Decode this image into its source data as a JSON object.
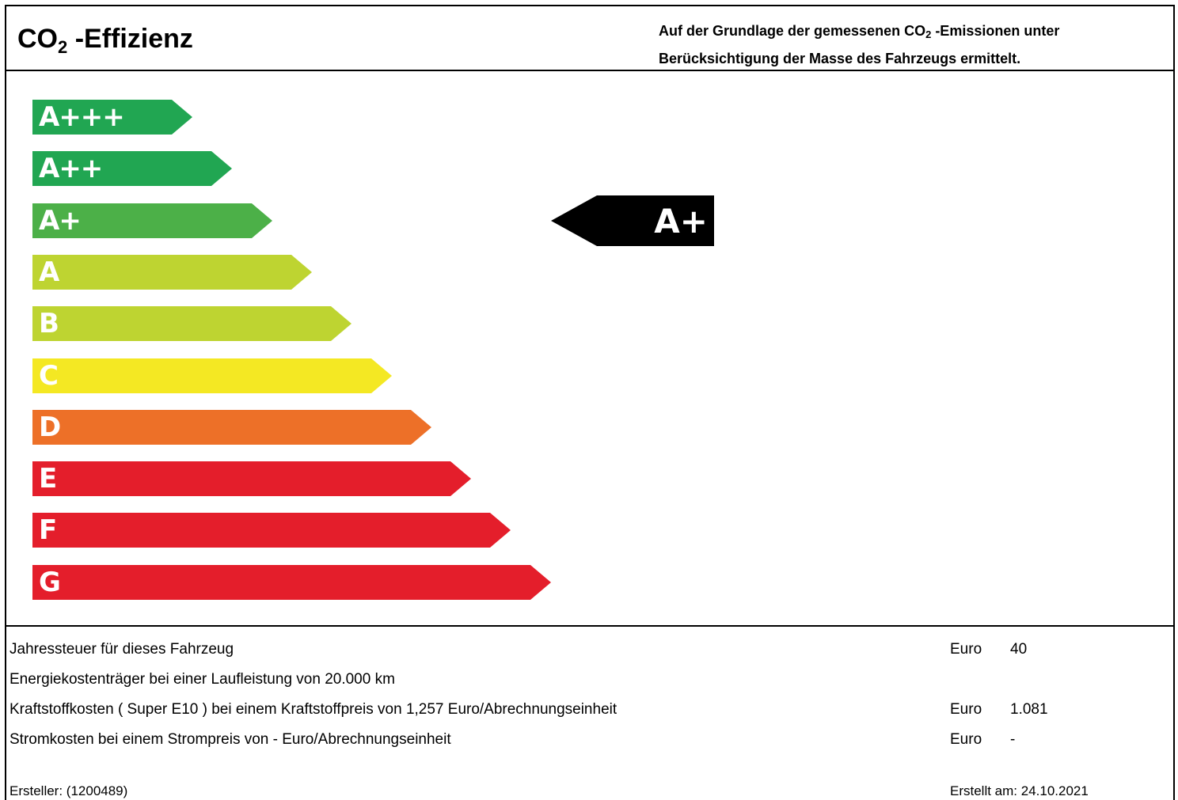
{
  "header": {
    "title_prefix": "CO",
    "title_sub": "2",
    "title_suffix": " -Effizienz",
    "subtitle_line1_prefix": "Auf der Grundlage der gemessenen CO",
    "subtitle_line1_sub": "2",
    "subtitle_line1_suffix": " -Emissionen unter",
    "subtitle_line2": "Berücksichtigung der Masse des Fahrzeugs ermittelt."
  },
  "scale": {
    "classes": [
      {
        "label": "A+++",
        "color": "#21a652"
      },
      {
        "label": "A++",
        "color": "#21a652"
      },
      {
        "label": "A+",
        "color": "#4cb048"
      },
      {
        "label": "A",
        "color": "#bed431"
      },
      {
        "label": "B",
        "color": "#bed431"
      },
      {
        "label": "C",
        "color": "#f4e823"
      },
      {
        "label": "D",
        "color": "#ed7028"
      },
      {
        "label": "E",
        "color": "#e41e2b"
      },
      {
        "label": "F",
        "color": "#e41e2b"
      },
      {
        "label": "G",
        "color": "#e41e2b"
      }
    ],
    "current": {
      "label": "A+",
      "color": "#000000"
    }
  },
  "info": {
    "rows": [
      {
        "label": "Jahressteuer für dieses Fahrzeug",
        "currency": "Euro",
        "value": "40"
      },
      {
        "label": "Energiekostenträger bei einer Laufleistung von 20.000 km",
        "currency": "",
        "value": ""
      },
      {
        "label": "Kraftstoffkosten (  Super E10  ) bei einem Kraftstoffpreis von  1,257  Euro/Abrechnungseinheit",
        "currency": "Euro",
        "value": "1.081"
      },
      {
        "label": "Stromkosten bei einem Strompreis von   -   Euro/Abrechnungseinheit",
        "currency": "Euro",
        "value": "-"
      }
    ]
  },
  "footer": {
    "creator": "Ersteller:   (1200489)",
    "created": "Erstellt am: 24.10.2021"
  }
}
